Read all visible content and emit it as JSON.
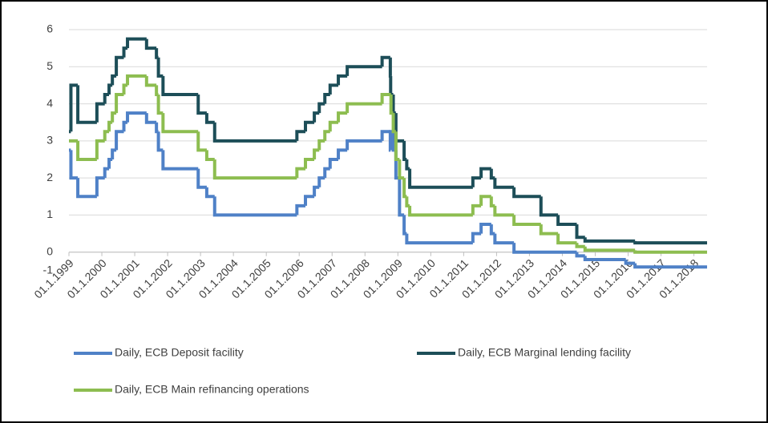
{
  "chart_data": {
    "type": "step-line",
    "xlim": [
      1999,
      2018.4
    ],
    "xticks": [
      {
        "value": 1999,
        "label": "01.1.1999"
      },
      {
        "value": 2000,
        "label": "01.1.2000"
      },
      {
        "value": 2001,
        "label": "01.1.2001"
      },
      {
        "value": 2002,
        "label": "01.1.2002"
      },
      {
        "value": 2003,
        "label": "01.1.2003"
      },
      {
        "value": 2004,
        "label": "01.1.2004"
      },
      {
        "value": 2005,
        "label": "01.1.2005"
      },
      {
        "value": 2006,
        "label": "01.1.2006"
      },
      {
        "value": 2007,
        "label": "01.1.2007"
      },
      {
        "value": 2008,
        "label": "01.1.2008"
      },
      {
        "value": 2009,
        "label": "01.1.2009"
      },
      {
        "value": 2010,
        "label": "01.1.2010"
      },
      {
        "value": 2011,
        "label": "01.1.2011"
      },
      {
        "value": 2012,
        "label": "01.1.2012"
      },
      {
        "value": 2013,
        "label": "01.1.2013"
      },
      {
        "value": 2014,
        "label": "01.1.2014"
      },
      {
        "value": 2015,
        "label": "01.1.2015"
      },
      {
        "value": 2016,
        "label": "01.1.2016"
      },
      {
        "value": 2017,
        "label": "01.1.2017"
      },
      {
        "value": 2018,
        "label": "01.1.2018"
      }
    ],
    "ylim": [
      -1,
      6
    ],
    "yticks": [
      -1,
      0,
      1,
      2,
      3,
      4,
      5,
      6
    ],
    "grid": true,
    "step": "post",
    "legend": "bottom",
    "series": [
      {
        "name": "Daily, ECB Deposit facility",
        "color": "#4f81c7",
        "x": [
          1999,
          1999.06,
          1999.27,
          1999.85,
          2000.09,
          2000.22,
          2000.32,
          2000.44,
          2000.67,
          2000.78,
          2001.36,
          2001.66,
          2001.72,
          2001.86,
          2002.93,
          2003.19,
          2003.43,
          2005.93,
          2006.19,
          2006.46,
          2006.61,
          2006.78,
          2006.94,
          2007.19,
          2007.46,
          2008.52,
          2008.77,
          2008.78,
          2008.86,
          2008.94,
          2009.05,
          2009.19,
          2009.27,
          2011.28,
          2011.53,
          2011.84,
          2011.95,
          2012.53,
          2014.44,
          2014.69,
          2015.93,
          2016.21
        ],
        "values": [
          2.75,
          2.0,
          1.5,
          2.0,
          2.25,
          2.5,
          2.75,
          3.25,
          3.5,
          3.75,
          3.5,
          3.25,
          2.75,
          2.25,
          1.75,
          1.5,
          1.0,
          1.25,
          1.5,
          1.75,
          2.0,
          2.25,
          2.5,
          2.75,
          3.0,
          3.25,
          2.75,
          3.25,
          2.75,
          2.0,
          1.0,
          0.5,
          0.25,
          0.5,
          0.75,
          0.5,
          0.25,
          0,
          -0.1,
          -0.2,
          -0.3,
          -0.4
        ]
      },
      {
        "name": "Daily, ECB Marginal lending facility",
        "color": "#1d4e58",
        "x": [
          1999,
          1999.06,
          1999.27,
          1999.85,
          2000.09,
          2000.22,
          2000.32,
          2000.44,
          2000.67,
          2000.78,
          2001.36,
          2001.66,
          2001.72,
          2001.86,
          2002.93,
          2003.19,
          2003.43,
          2005.93,
          2006.19,
          2006.46,
          2006.61,
          2006.78,
          2006.94,
          2007.19,
          2007.46,
          2008.52,
          2008.77,
          2008.78,
          2008.86,
          2008.94,
          2009.19,
          2009.27,
          2009.36,
          2011.28,
          2011.53,
          2011.84,
          2011.95,
          2012.53,
          2013.35,
          2013.87,
          2014.44,
          2014.69,
          2016.21
        ],
        "values": [
          3.25,
          4.5,
          3.5,
          4.0,
          4.25,
          4.5,
          4.75,
          5.25,
          5.5,
          5.75,
          5.5,
          5.25,
          4.75,
          4.25,
          3.75,
          3.5,
          3.0,
          3.25,
          3.5,
          3.75,
          4.0,
          4.25,
          4.5,
          4.75,
          5.0,
          5.25,
          4.75,
          4.25,
          3.75,
          3.0,
          2.5,
          2.25,
          1.75,
          2.0,
          2.25,
          2.0,
          1.75,
          1.5,
          1.0,
          0.75,
          0.4,
          0.3,
          0.25
        ]
      },
      {
        "name": "Daily, ECB Main refinancing operations",
        "color": "#8dbd50",
        "x": [
          1999,
          1999.27,
          1999.85,
          2000.09,
          2000.22,
          2000.32,
          2000.44,
          2000.67,
          2000.78,
          2001.36,
          2001.66,
          2001.72,
          2001.86,
          2002.93,
          2003.19,
          2003.43,
          2005.93,
          2006.19,
          2006.46,
          2006.61,
          2006.78,
          2006.94,
          2007.19,
          2007.46,
          2008.52,
          2008.79,
          2008.86,
          2008.94,
          2009.05,
          2009.19,
          2009.27,
          2009.36,
          2011.28,
          2011.53,
          2011.84,
          2011.95,
          2012.53,
          2013.35,
          2013.87,
          2014.44,
          2014.69,
          2016.21
        ],
        "values": [
          3.0,
          2.5,
          3.0,
          3.25,
          3.5,
          3.75,
          4.25,
          4.5,
          4.75,
          4.5,
          4.25,
          3.75,
          3.25,
          2.75,
          2.5,
          2.0,
          2.25,
          2.5,
          2.75,
          3.0,
          3.25,
          3.5,
          3.75,
          4.0,
          4.25,
          3.75,
          3.25,
          2.5,
          2.0,
          1.5,
          1.25,
          1.0,
          1.25,
          1.5,
          1.25,
          1.0,
          0.75,
          0.5,
          0.25,
          0.15,
          0.05,
          0
        ]
      }
    ]
  }
}
